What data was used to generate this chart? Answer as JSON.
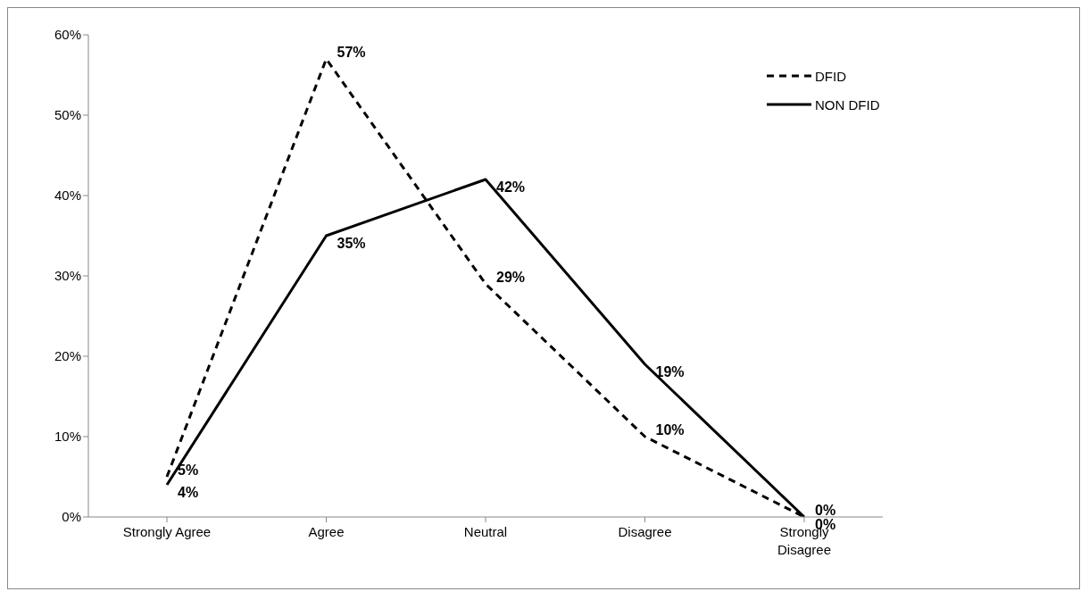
{
  "chart_data": {
    "type": "line",
    "categories": [
      "Strongly Agree",
      "Agree",
      "Neutral",
      "Disagree",
      "Strongly Disagree"
    ],
    "series": [
      {
        "name": "DFID",
        "color": "#000000",
        "line_style": "dashed",
        "values": [
          5,
          57,
          29,
          10,
          0
        ],
        "value_labels": [
          "5%",
          "57%",
          "29%",
          "10%",
          "0%"
        ]
      },
      {
        "name": "NON DFID",
        "color": "#000000",
        "line_style": "solid",
        "values": [
          4,
          35,
          42,
          19,
          0
        ],
        "value_labels": [
          "4%",
          "35%",
          "42%",
          "19%",
          "0%"
        ]
      }
    ],
    "ylim": [
      0,
      60
    ],
    "yticks": [
      {
        "value": 0,
        "label": "0%"
      },
      {
        "value": 10,
        "label": "10%"
      },
      {
        "value": 20,
        "label": "20%"
      },
      {
        "value": 30,
        "label": "30%"
      },
      {
        "value": 40,
        "label": "40%"
      },
      {
        "value": 50,
        "label": "50%"
      },
      {
        "value": 60,
        "label": "60%"
      }
    ],
    "grid": false,
    "legend": "top right",
    "marker": "none"
  }
}
